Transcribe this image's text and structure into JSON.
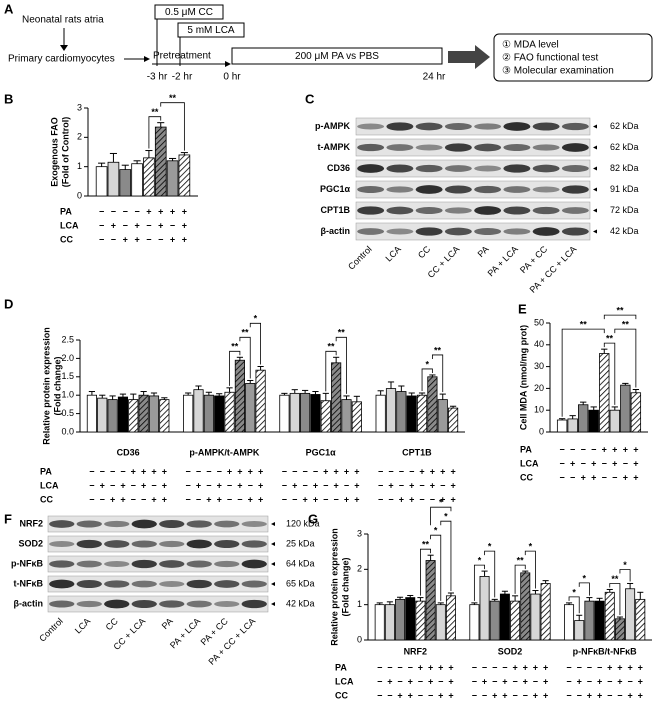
{
  "figure": {
    "panel_labels": [
      "A",
      "B",
      "C",
      "D",
      "E",
      "F",
      "G"
    ],
    "diagram": {
      "source": "Neonatal rats atria",
      "cells": "Primary cardiomyocytes",
      "cc": "0.5 μM CC",
      "lca": "5 mM LCA",
      "pretreatment": "Pretreatment",
      "times": [
        "-3 hr",
        "-2 hr",
        "0 hr",
        "24 hr"
      ],
      "treatment": "200 μM PA vs PBS",
      "outcomes": [
        "① MDA level",
        "② FAO functional test",
        "③ Molecular examination"
      ]
    },
    "blots": [
      {
        "rows": [
          {
            "label": "p-AMPK",
            "kda": "62 kDa"
          },
          {
            "label": "t-AMPK",
            "kda": "62 kDa"
          },
          {
            "label": "CD36",
            "kda": "82 kDa"
          },
          {
            "label": "PGC1α",
            "kda": "91 kDa"
          },
          {
            "label": "CPT1B",
            "kda": "72 kDa"
          },
          {
            "label": "β-actin",
            "kda": "42 kDa"
          }
        ],
        "lanes": [
          "Control",
          "LCA",
          "CC",
          "CC + LCA",
          "PA",
          "PA + LCA",
          "PA + CC",
          "PA + CC + LCA"
        ]
      },
      {
        "rows": [
          {
            "label": "NRF2",
            "kda": "120 kDa"
          },
          {
            "label": "SOD2",
            "kda": "25 kDa"
          },
          {
            "label": "p-NFκB",
            "kda": "64 kDa"
          },
          {
            "label": "t-NFκB",
            "kda": "65 kDa"
          },
          {
            "label": "β-actin",
            "kda": "42 kDa"
          }
        ],
        "lanes": [
          "Control",
          "LCA",
          "CC",
          "CC + LCA",
          "PA",
          "PA + LCA",
          "PA + CC",
          "PA + CC + LCA"
        ]
      }
    ]
  },
  "chart_data": [
    {
      "type": "bar",
      "ylabel": [
        "Exogenous FAO",
        "(Fold of Control)"
      ],
      "ylim": [
        0,
        3
      ],
      "yticks": [
        0,
        1,
        2,
        3
      ],
      "fills": [
        "#ffffff",
        "#d6d6d6",
        "#8a8a8a",
        "#ffffff",
        "#ffffff",
        "#8a8a8a",
        "#9a9a9a",
        "#ffffff"
      ],
      "hatched": [
        false,
        false,
        false,
        false,
        true,
        true,
        false,
        true
      ],
      "groups": [
        {
          "values": [
            1.0,
            1.15,
            0.9,
            1.1,
            1.3,
            2.35,
            1.2,
            1.4
          ],
          "errors": [
            0.12,
            0.3,
            0.15,
            0.1,
            0.25,
            0.15,
            0.08,
            0.08
          ],
          "brackets": [
            {
              "bars": [
                4,
                5
              ],
              "label": "**"
            },
            {
              "bars": [
                5,
                7
              ],
              "label": "**"
            }
          ]
        }
      ],
      "treatments": [
        {
          "name": "PA",
          "signs": [
            "−",
            "−",
            "−",
            "−",
            "+",
            "+",
            "+",
            "+"
          ]
        },
        {
          "name": "LCA",
          "signs": [
            "−",
            "+",
            "−",
            "+",
            "−",
            "+",
            "−",
            "+"
          ]
        },
        {
          "name": "CC",
          "signs": [
            "−",
            "−",
            "+",
            "+",
            "−",
            "−",
            "+",
            "+"
          ]
        }
      ]
    },
    {
      "type": "bar",
      "ylabel": [
        "Relative protein expression",
        "(Fold change)"
      ],
      "ylim": [
        0,
        2.5
      ],
      "yticks": [
        {
          "value": 0,
          "label": "0.0"
        },
        0.5,
        {
          "value": 1,
          "label": "1.0"
        },
        1.5,
        {
          "value": 2,
          "label": "2.0"
        },
        2.5
      ],
      "fills": [
        "#ffffff",
        "#d6d6d6",
        "#8a8a8a",
        "#000000",
        "#ffffff",
        "#8a8a8a",
        "#9a9a9a",
        "#ffffff"
      ],
      "hatched": [
        false,
        false,
        false,
        false,
        true,
        true,
        false,
        true
      ],
      "groups": [
        {
          "label": "CD36",
          "values": [
            1.0,
            0.92,
            0.88,
            0.95,
            0.88,
            1.0,
            0.98,
            0.88
          ],
          "errors": [
            0.1,
            0.08,
            0.1,
            0.08,
            0.15,
            0.1,
            0.08,
            0.05
          ],
          "brackets": []
        },
        {
          "label": "p-AMPK/t-AMPK",
          "values": [
            1.0,
            1.15,
            1.0,
            0.98,
            1.08,
            1.95,
            1.32,
            1.68
          ],
          "errors": [
            0.06,
            0.1,
            0.08,
            0.06,
            0.12,
            0.08,
            0.08,
            0.1
          ],
          "brackets": [
            {
              "bars": [
                4,
                5
              ],
              "label": "**"
            },
            {
              "bars": [
                5,
                6
              ],
              "label": "**"
            },
            {
              "bars": [
                6,
                7
              ],
              "label": "*"
            }
          ]
        },
        {
          "label": "PGC1α",
          "values": [
            1.0,
            1.05,
            1.05,
            1.02,
            0.85,
            1.88,
            0.88,
            0.82
          ],
          "errors": [
            0.05,
            0.1,
            0.08,
            0.08,
            0.2,
            0.15,
            0.1,
            0.15
          ],
          "brackets": [
            {
              "bars": [
                4,
                5
              ],
              "label": "**"
            },
            {
              "bars": [
                5,
                6
              ],
              "label": "**"
            }
          ]
        },
        {
          "label": "CPT1B",
          "values": [
            1.0,
            1.18,
            1.1,
            0.98,
            1.0,
            1.5,
            0.88,
            0.65
          ],
          "errors": [
            0.12,
            0.18,
            0.15,
            0.08,
            0.06,
            0.05,
            0.15,
            0.05
          ],
          "brackets": [
            {
              "bars": [
                4,
                5
              ],
              "label": "*"
            },
            {
              "bars": [
                5,
                6
              ],
              "label": "**"
            }
          ]
        }
      ],
      "treatments": [
        {
          "name": "PA",
          "signs": [
            "−",
            "−",
            "−",
            "−",
            "+",
            "+",
            "+",
            "+"
          ]
        },
        {
          "name": "LCA",
          "signs": [
            "−",
            "+",
            "−",
            "+",
            "−",
            "+",
            "−",
            "+"
          ]
        },
        {
          "name": "CC",
          "signs": [
            "−",
            "−",
            "+",
            "+",
            "−",
            "−",
            "+",
            "+"
          ]
        }
      ]
    },
    {
      "type": "bar",
      "ylabel": [
        "Cell MDA (nmol/mg prot)"
      ],
      "ylim": [
        0,
        50
      ],
      "yticks": [
        0,
        10,
        20,
        30,
        40,
        50
      ],
      "fills": [
        "#ffffff",
        "#d6d6d6",
        "#8a8a8a",
        "#000000",
        "#ffffff",
        "#d6d6d6",
        "#8a8a8a",
        "#ffffff"
      ],
      "hatched": [
        false,
        false,
        false,
        false,
        true,
        false,
        false,
        true
      ],
      "groups": [
        {
          "values": [
            5.5,
            6,
            12.5,
            10,
            36,
            10,
            21.5,
            18
          ],
          "errors": [
            0.6,
            1.5,
            1.2,
            1.5,
            2,
            1.5,
            0.8,
            1.5
          ],
          "brackets": [
            {
              "bars": [
                4,
                5
              ],
              "label": "**"
            },
            {
              "bars": [
                0,
                4
              ],
              "label": "**"
            },
            {
              "bars": [
                5,
                7
              ],
              "label": "**"
            },
            {
              "bars": [
                4,
                7
              ],
              "label": "**"
            }
          ]
        }
      ],
      "treatments": [
        {
          "name": "PA",
          "signs": [
            "−",
            "−",
            "−",
            "−",
            "+",
            "+",
            "+",
            "+"
          ]
        },
        {
          "name": "LCA",
          "signs": [
            "−",
            "+",
            "−",
            "+",
            "−",
            "+",
            "−",
            "+"
          ]
        },
        {
          "name": "CC",
          "signs": [
            "−",
            "−",
            "+",
            "+",
            "−",
            "−",
            "+",
            "+"
          ]
        }
      ]
    },
    {
      "type": "bar",
      "ylabel": [
        "Relative protein expression",
        "(Fold change)"
      ],
      "ylim": [
        0,
        3
      ],
      "yticks": [
        0,
        1,
        2,
        3
      ],
      "fills": [
        "#ffffff",
        "#d6d6d6",
        "#8a8a8a",
        "#000000",
        "#ffffff",
        "#8a8a8a",
        "#d6d6d6",
        "#ffffff"
      ],
      "hatched": [
        false,
        false,
        false,
        false,
        true,
        true,
        false,
        true
      ],
      "groups": [
        {
          "label": "NRF2",
          "values": [
            1.0,
            1.0,
            1.15,
            1.2,
            1.1,
            2.25,
            1.0,
            1.25
          ],
          "errors": [
            0.05,
            0.08,
            0.06,
            0.06,
            0.1,
            0.15,
            0.05,
            0.08
          ],
          "brackets": [
            {
              "bars": [
                4,
                5
              ],
              "label": "**"
            },
            {
              "bars": [
                5,
                6
              ],
              "label": "*"
            },
            {
              "bars": [
                6,
                7
              ],
              "label": "*"
            },
            {
              "bars": [
                5,
                7
              ],
              "label": "*"
            }
          ]
        },
        {
          "label": "SOD2",
          "values": [
            1.0,
            1.8,
            1.1,
            1.3,
            1.1,
            1.9,
            1.3,
            1.6
          ],
          "errors": [
            0.05,
            0.15,
            0.05,
            0.08,
            0.15,
            0.05,
            0.1,
            0.08
          ],
          "brackets": [
            {
              "bars": [
                0,
                1
              ],
              "label": "*"
            },
            {
              "bars": [
                1,
                2
              ],
              "label": "*"
            },
            {
              "bars": [
                4,
                5
              ],
              "label": "**"
            },
            {
              "bars": [
                5,
                6
              ],
              "label": "*"
            }
          ]
        },
        {
          "label": "p-NFκB/t-NFκB",
          "values": [
            1.0,
            0.55,
            1.1,
            1.1,
            1.35,
            0.6,
            1.45,
            1.15
          ],
          "errors": [
            0.05,
            0.15,
            0.1,
            0.08,
            0.08,
            0.05,
            0.15,
            0.2
          ],
          "brackets": [
            {
              "bars": [
                0,
                1
              ],
              "label": "*"
            },
            {
              "bars": [
                1,
                2
              ],
              "label": "*"
            },
            {
              "bars": [
                4,
                5
              ],
              "label": "**"
            },
            {
              "bars": [
                5,
                6
              ],
              "label": "*"
            }
          ]
        }
      ],
      "treatments": [
        {
          "name": "PA",
          "signs": [
            "−",
            "−",
            "−",
            "−",
            "+",
            "+",
            "+",
            "+"
          ]
        },
        {
          "name": "LCA",
          "signs": [
            "−",
            "+",
            "−",
            "+",
            "−",
            "+",
            "−",
            "+"
          ]
        },
        {
          "name": "CC",
          "signs": [
            "−",
            "−",
            "+",
            "+",
            "−",
            "−",
            "+",
            "+"
          ]
        }
      ]
    }
  ]
}
